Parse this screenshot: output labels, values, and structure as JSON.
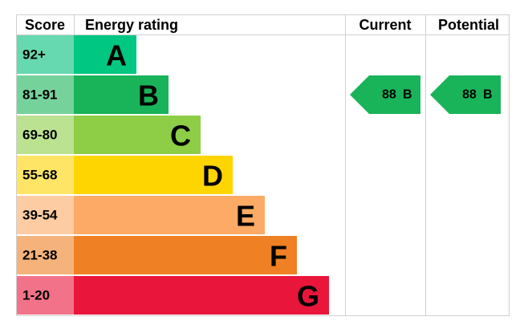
{
  "header": {
    "score": "Score",
    "rating": "Energy rating",
    "current": "Current",
    "potential": "Potential"
  },
  "rows": [
    {
      "range": "92+",
      "letter": "A",
      "color": "#00c781",
      "score_color": "#66d9b0"
    },
    {
      "range": "81-91",
      "letter": "B",
      "color": "#19b459",
      "score_color": "#75d29b"
    },
    {
      "range": "69-80",
      "letter": "C",
      "color": "#8dce46",
      "score_color": "#bbe290"
    },
    {
      "range": "55-68",
      "letter": "D",
      "color": "#ffd500",
      "score_color": "#ffe566"
    },
    {
      "range": "39-54",
      "letter": "E",
      "color": "#fcaa65",
      "score_color": "#fdcca3"
    },
    {
      "range": "21-38",
      "letter": "F",
      "color": "#ef8023",
      "score_color": "#f5b37b"
    },
    {
      "range": "1-20",
      "letter": "G",
      "color": "#e9153b",
      "score_color": "#f27389"
    }
  ],
  "current": {
    "score": "88",
    "letter": "B"
  },
  "potential": {
    "score": "88",
    "letter": "B"
  }
}
